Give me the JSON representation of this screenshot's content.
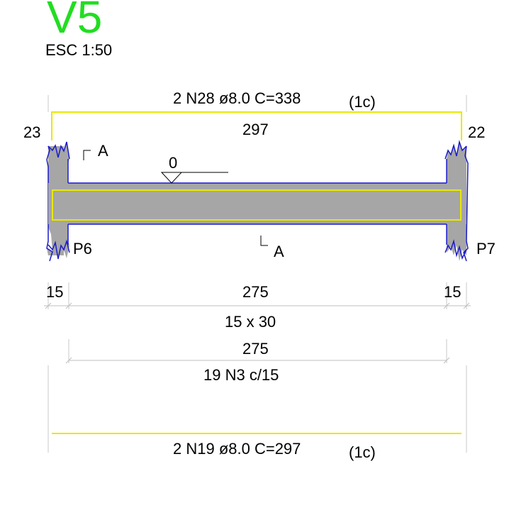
{
  "title": {
    "beam_id": "V5",
    "scale": "ESC 1:50"
  },
  "top_bar": {
    "label_main": "2 N28 ø8.0 C=338",
    "label_layer": "(1c)",
    "length": "297",
    "hook_left": "23",
    "hook_right": "22"
  },
  "section_mark": {
    "top": "A",
    "bottom": "A"
  },
  "level_mark": "0",
  "supports": {
    "left": "P6",
    "right": "P7"
  },
  "dimensions": {
    "left_support": "15",
    "span": "275",
    "right_support": "15",
    "section": "15 x 30"
  },
  "stirrups": {
    "span": "275",
    "label": "19 N3 c/15"
  },
  "bottom_bar": {
    "label_main": "2 N19 ø8.0 C=297",
    "label_layer": "(1c)"
  },
  "colors": {
    "title_green": "#22dd22",
    "rebar_yellow": "#e8e800",
    "outline_blue": "#1a1acc",
    "concrete_gray": "#a6a6a6",
    "dim_gray": "#bfbfbf"
  }
}
